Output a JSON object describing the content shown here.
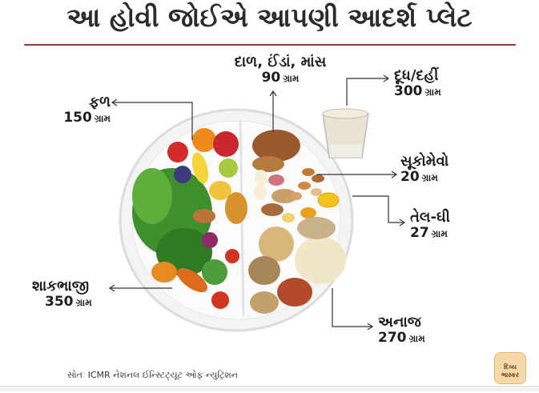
{
  "title": "આ હોવી જોઈએ આપણી આદર્શ પ્લેટ",
  "items": [
    {
      "name": "દાળ, ઈંડાં, માંસ",
      "qty": "90",
      "unit": "ગ્રામ"
    },
    {
      "name": "દૂધ/દહીં",
      "qty": "300",
      "unit": "ગ્રામ"
    },
    {
      "name": "ફળ",
      "qty": "150",
      "unit": "ગ્રામ"
    },
    {
      "name": "સૂકોમેવો",
      "qty": "20",
      "unit": "ગ્રામ"
    },
    {
      "name": "તેલ-ઘી",
      "qty": "27",
      "unit": "ગ્રામ"
    },
    {
      "name": "શાકભાજી",
      "qty": "350",
      "unit": "ગ્રામ"
    },
    {
      "name": "અનાજ",
      "qty": "270",
      "unit": "ગ્રામ"
    }
  ],
  "source": "સોતઃ ICMR નેશનલ ઈન્સ્ટિટ્યૂટ ઓફ ન્યુટ્રિશન",
  "logo_text": "દિવ્ય ભાસ્કર",
  "colors": {
    "accent_rule": "#9c3b3b",
    "plate": "#f4f4f4",
    "vegetables": "#3f8f2f",
    "fruits": "#e0832a",
    "grains": "#d9b77a",
    "pulses": "#9b5a2b"
  }
}
